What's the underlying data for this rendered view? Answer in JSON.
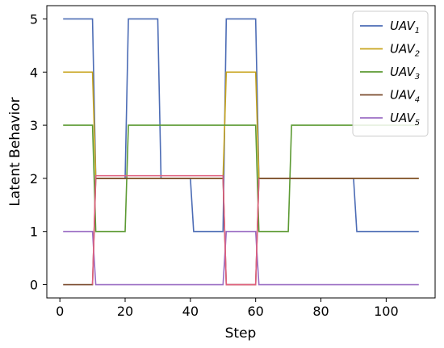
{
  "chart_data": {
    "type": "line",
    "xlabel": "Step",
    "ylabel": "Latent Behavior",
    "xlim": [
      -4,
      115
    ],
    "ylim": [
      -0.25,
      5.25
    ],
    "xticks": [
      0,
      20,
      40,
      60,
      80,
      100
    ],
    "yticks": [
      0,
      1,
      2,
      3,
      4,
      5
    ],
    "grid": false,
    "legend_position": "top-right",
    "series": [
      {
        "name": "UAV",
        "sub": "1",
        "color": "#4c6cb5",
        "x": [
          1,
          10,
          11,
          20,
          21,
          30,
          31,
          40,
          41,
          50,
          51,
          60,
          61,
          90,
          91,
          110
        ],
        "y": [
          5,
          5,
          2,
          2,
          5,
          5,
          2,
          2,
          1,
          1,
          5,
          5,
          2,
          2,
          1,
          1
        ]
      },
      {
        "name": "UAV",
        "sub": "2",
        "color": "#c8a41c",
        "x": [
          1,
          10,
          11,
          50,
          51,
          60,
          61,
          110
        ],
        "y": [
          4,
          4,
          2,
          2,
          4,
          4,
          2,
          2
        ]
      },
      {
        "name": "UAV",
        "sub": "3",
        "color": "#5c9a33",
        "x": [
          1,
          10,
          11,
          20,
          21,
          60,
          61,
          70,
          71,
          110
        ],
        "y": [
          3,
          3,
          1,
          1,
          3,
          3,
          1,
          1,
          3,
          3
        ]
      },
      {
        "name": "UAV",
        "sub": "4",
        "color": "#7a4a2c",
        "x": [
          1,
          10,
          11,
          50,
          51,
          60,
          61,
          110
        ],
        "y": [
          0,
          0,
          2,
          2,
          0,
          0,
          2,
          2
        ]
      },
      {
        "name": "UAV",
        "sub": "5",
        "color": "#9b6ec4",
        "x": [
          1,
          10,
          11,
          50,
          51,
          60,
          61,
          110
        ],
        "y": [
          1,
          1,
          0,
          0,
          1,
          1,
          0,
          0
        ]
      },
      {
        "name": "",
        "sub": "",
        "color": "#e0607e",
        "x": [
          10,
          11,
          11.3,
          50,
          51,
          60,
          61
        ],
        "y": [
          0,
          2.05,
          2.05,
          2.05,
          0,
          0,
          2
        ]
      }
    ]
  }
}
